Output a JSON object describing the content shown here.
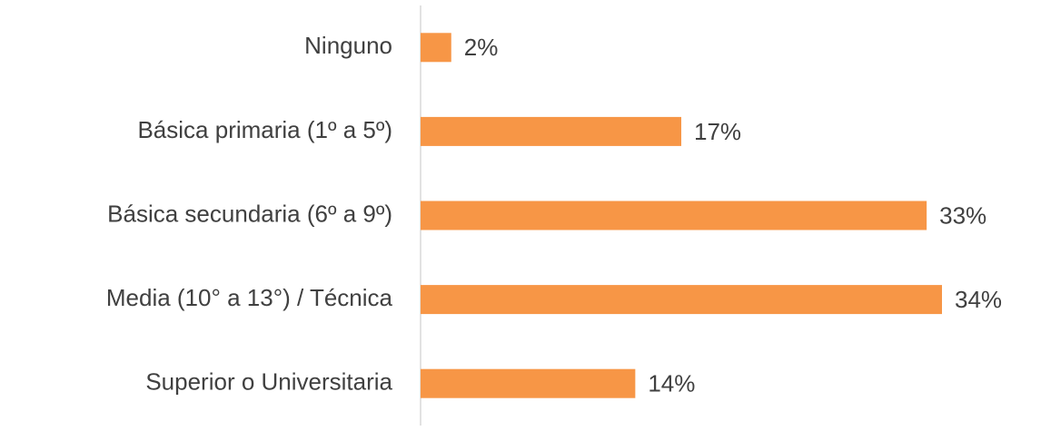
{
  "chart_data": {
    "type": "bar",
    "orientation": "horizontal",
    "categories": [
      "Ninguno",
      "Básica primaria (1º a 5º)",
      "Básica secundaria (6º a 9º)",
      "Media (10° a 13°) / Técnica",
      "Superior o Universitaria"
    ],
    "values": [
      2,
      17,
      33,
      34,
      14
    ],
    "value_labels": [
      "2%",
      "17%",
      "33%",
      "34%",
      "14%"
    ],
    "color": "#f79646"
  }
}
